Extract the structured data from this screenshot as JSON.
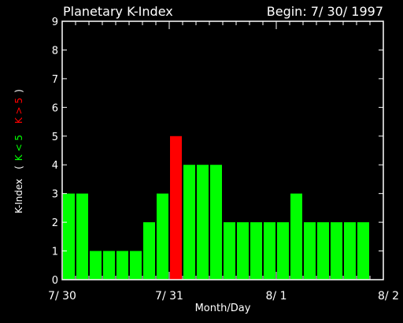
{
  "chart_data": {
    "type": "bar",
    "title": "Planetary K-Index",
    "subtitle": "Begin: 7/ 30/ 1997",
    "xlabel": "Month/Day",
    "ylabel": {
      "main": "K-Index",
      "open_paren": "(",
      "low_label": "K < 5",
      "high_label": "K > 5",
      "close_paren": ")"
    },
    "ylim": [
      0,
      9
    ],
    "yticks": [
      "0",
      "1",
      "2",
      "3",
      "4",
      "5",
      "6",
      "7",
      "8",
      "9"
    ],
    "xlim": [
      0,
      24
    ],
    "x_tick_labels": [
      {
        "label": "7/ 30",
        "pos": 0
      },
      {
        "label": "7/ 31",
        "pos": 8
      },
      {
        "label": "8/ 1",
        "pos": 16
      },
      {
        "label": "8/ 2",
        "pos": 24
      }
    ],
    "values": [
      3,
      3,
      1,
      1,
      1,
      1,
      2,
      3,
      5,
      4,
      4,
      4,
      2,
      2,
      2,
      2,
      2,
      3,
      2,
      2,
      2,
      2,
      2
    ],
    "threshold": 5,
    "colors": {
      "low": "#00ff00",
      "high": "#ff0000",
      "axes": "#ffffff",
      "background": "#000000"
    }
  }
}
